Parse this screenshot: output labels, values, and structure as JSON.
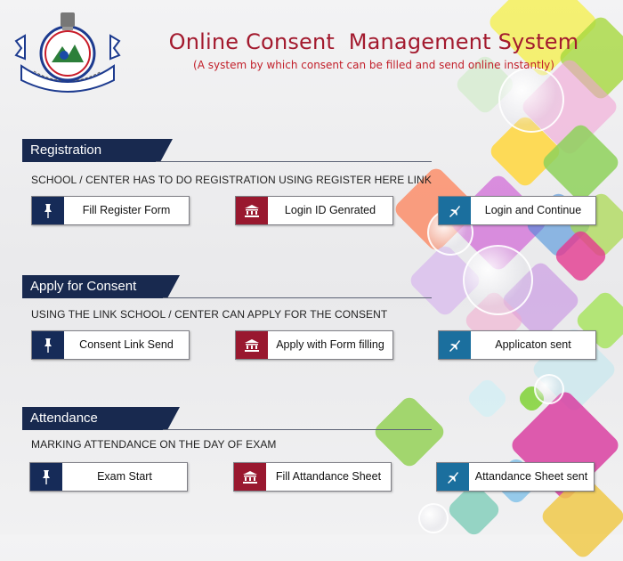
{
  "header": {
    "title": "Online Consent  Management System",
    "subtitle": "(A system by which consent can be filled and send online instantly)"
  },
  "sections": [
    {
      "heading": "Registration",
      "description": "SCHOOL / CENTER HAS TO DO REGISTRATION USING REGISTER HERE LINK",
      "steps": [
        {
          "label": "Fill Register Form",
          "icon": "pin-icon"
        },
        {
          "label": "Login ID Genrated",
          "icon": "institution-icon"
        },
        {
          "label": "Login and Continue",
          "icon": "plane-icon"
        }
      ]
    },
    {
      "heading": "Apply for Consent",
      "description": "USING THE LINK SCHOOL / CENTER CAN APPLY FOR THE CONSENT",
      "steps": [
        {
          "label": "Consent Link Send",
          "icon": "pin-icon"
        },
        {
          "label": "Apply with Form filling",
          "icon": "institution-icon"
        },
        {
          "label": "Applicaton sent",
          "icon": "plane-icon"
        }
      ]
    },
    {
      "heading": "Attendance",
      "description": "MARKING ATTENDANCE ON THE DAY OF EXAM",
      "steps": [
        {
          "label": "Exam Start",
          "icon": "pin-icon"
        },
        {
          "label": "Fill Attandance Sheet",
          "icon": "institution-icon"
        },
        {
          "label": "Attandance Sheet sent",
          "icon": "plane-icon"
        }
      ]
    }
  ],
  "colors": {
    "title": "#a31a2e",
    "section_heading_bg": "#18294f",
    "icon_navy": "#162b58",
    "icon_maroon": "#99182f",
    "icon_teal": "#1b6f9e"
  }
}
